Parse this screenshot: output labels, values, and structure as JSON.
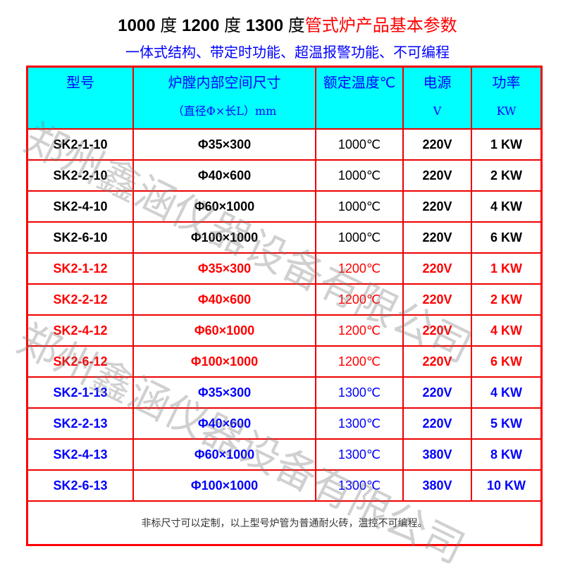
{
  "title": {
    "part1": "1000",
    "deg1": "度",
    "part2": "1200",
    "deg2": "度",
    "part3": "1300",
    "deg3": "度",
    "red": "管式炉产品基本参数"
  },
  "subtitle": "一体式结构、带定时功能、超温报警功能、不可编程",
  "headers": [
    {
      "line1": "型号",
      "line2": ""
    },
    {
      "line1": "炉膛内部空间尺寸",
      "line2": "（直径Φ×长L）mm"
    },
    {
      "line1": "额定温度℃",
      "line2": ""
    },
    {
      "line1": "电源",
      "line2": "V"
    },
    {
      "line1": "功率",
      "line2": "KW"
    }
  ],
  "rows": [
    [
      "SK2-1-10",
      "Φ35×300",
      "1000℃",
      "220V",
      "1 KW"
    ],
    [
      "SK2-2-10",
      "Φ40×600",
      "1000℃",
      "220V",
      "2 KW"
    ],
    [
      "SK2-4-10",
      "Φ60×1000",
      "1000℃",
      "220V",
      "4 KW"
    ],
    [
      "SK2-6-10",
      "Φ100×1000",
      "1000℃",
      "220V",
      "6 KW"
    ],
    [
      "SK2-1-12",
      "Φ35×300",
      "1200℃",
      "220V",
      "1 KW"
    ],
    [
      "SK2-2-12",
      "Φ40×600",
      "1200℃",
      "220V",
      "2 KW"
    ],
    [
      "SK2-4-12",
      "Φ60×1000",
      "1200℃",
      "220V",
      "4 KW"
    ],
    [
      "SK2-6-12",
      "Φ100×1000",
      "1200℃",
      "220V",
      "6 KW"
    ],
    [
      "SK2-1-13",
      "Φ35×300",
      "1300℃",
      "220V",
      "4 KW"
    ],
    [
      "SK2-2-13",
      "Φ40×600",
      "1300℃",
      "220V",
      "5 KW"
    ],
    [
      "SK2-4-13",
      "Φ60×1000",
      "1300℃",
      "380V",
      "8 KW"
    ],
    [
      "SK2-6-13",
      "Φ100×1000",
      "1300℃",
      "380V",
      "10 KW"
    ]
  ],
  "footnote": "非标尺寸可以定制，以上型号炉管为普通耐火砖，温控不可编程。",
  "watermark": "郑州鑫涵仪器设备有限公司",
  "colors": {
    "border": "#ff0000",
    "header_bg": "#00ffff",
    "group_1000": "#000000",
    "group_1200": "#ff0000",
    "group_1300": "#0000ff"
  }
}
